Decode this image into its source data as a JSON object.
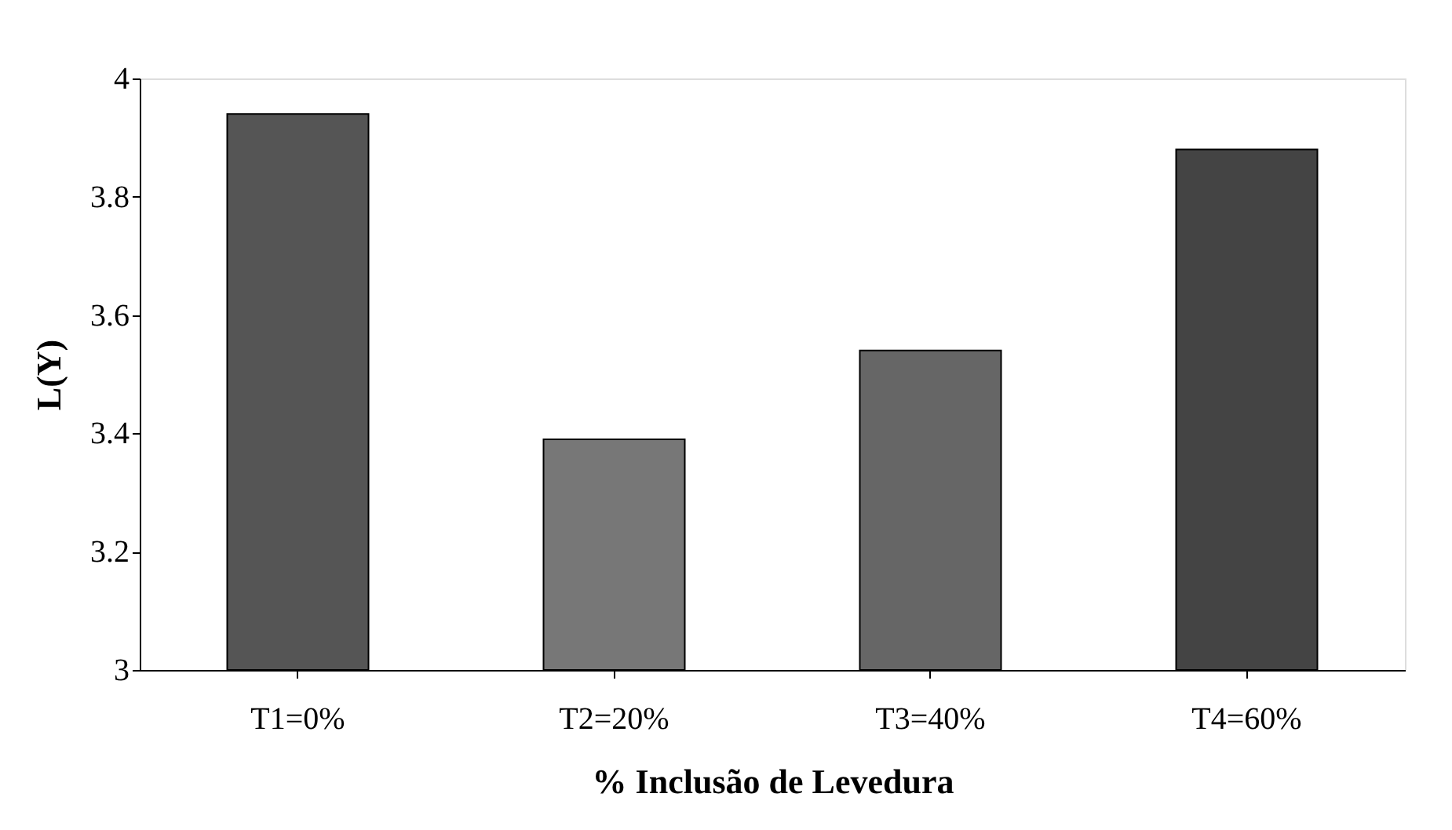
{
  "chart_data": {
    "type": "bar",
    "xlabel": "% Inclusão de Levedura",
    "ylabel": "L(Y)",
    "categories": [
      "T1=0%",
      "T2=20%",
      "T3=40%",
      "T4=60%"
    ],
    "values": [
      3.94,
      3.39,
      3.54,
      3.88
    ],
    "colors": [
      "#555555",
      "#777777",
      "#666666",
      "#444444"
    ],
    "ylim": [
      3,
      4
    ],
    "yticks": [
      3,
      3.2,
      3.4,
      3.6,
      3.8,
      4
    ],
    "grid": false
  }
}
